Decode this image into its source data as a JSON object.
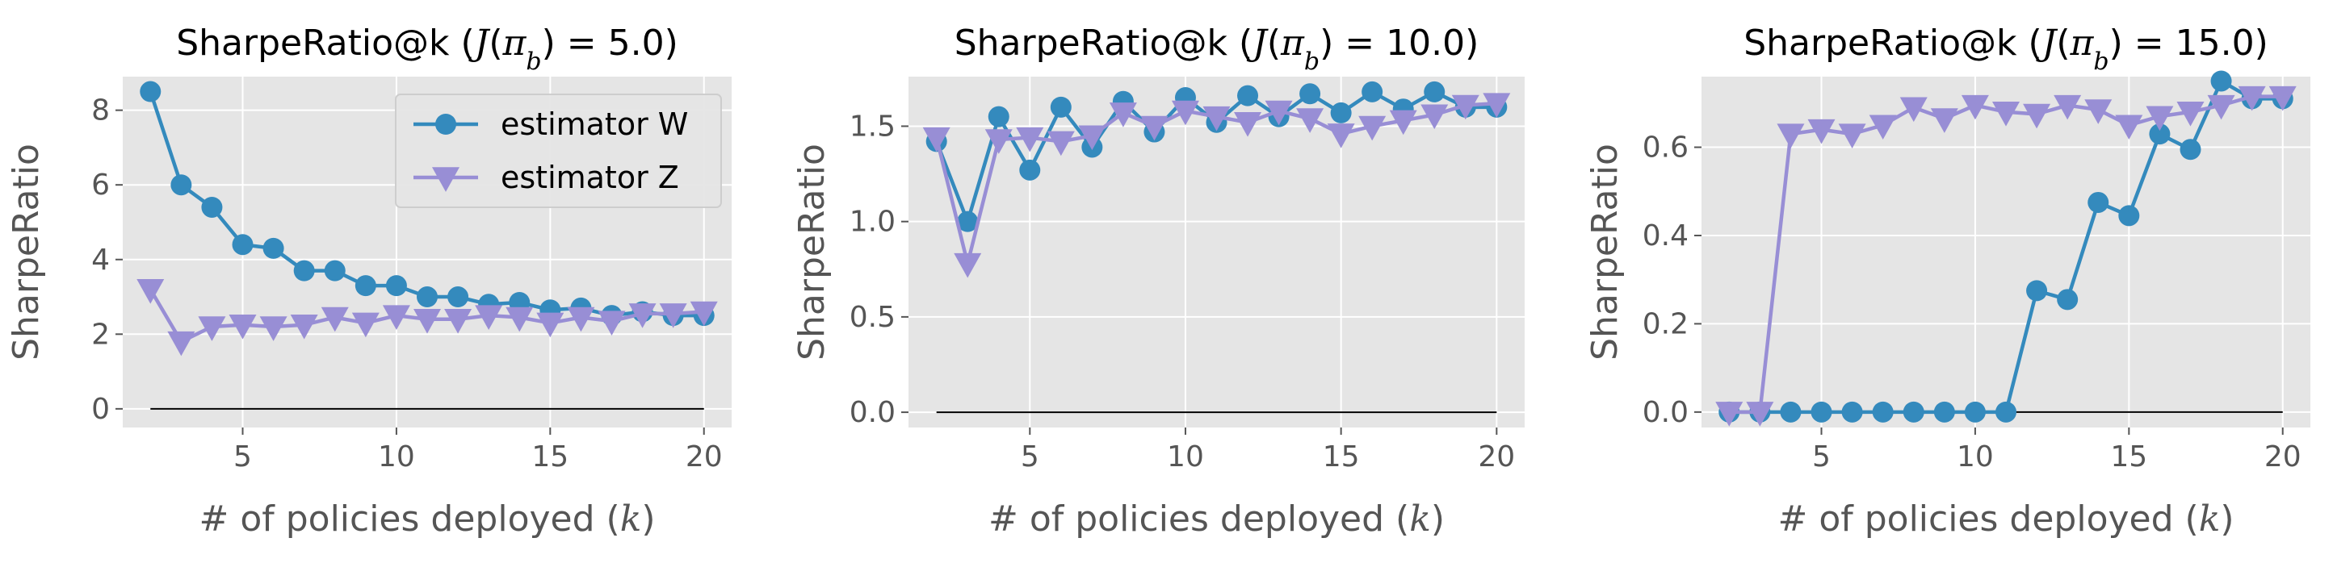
{
  "colors": {
    "series_w": "#348ABD",
    "series_z": "#988ED5",
    "plot_bg": "#E5E5E5",
    "grid": "#FFFFFF",
    "text": "#555555"
  },
  "chart_data": [
    {
      "type": "line",
      "title": "SharpeRatio@k (J(π_b) = 5.0)",
      "title_parts": {
        "prefix": "SharpeRatio@k (",
        "math_j": "J",
        "math_pi": "π",
        "math_sub": "b",
        "math_rest": ") = 5.0",
        "suffix": ")"
      },
      "xlabel": "# of policies deployed (k)",
      "ylabel": "SharpeRatio",
      "xlim": [
        1.1,
        20.9
      ],
      "ylim": [
        -0.5,
        8.9
      ],
      "xticks": [
        5,
        10,
        15,
        20
      ],
      "yticks": [
        0,
        2,
        4,
        6,
        8
      ],
      "ytick_labels": [
        "0",
        "2",
        "4",
        "6",
        "8"
      ],
      "grid": true,
      "legend": "top-right",
      "hline": 0,
      "x": [
        2,
        3,
        4,
        5,
        6,
        7,
        8,
        9,
        10,
        11,
        12,
        13,
        14,
        15,
        16,
        17,
        18,
        19,
        20
      ],
      "series": [
        {
          "name": "estimator W",
          "marker": "circle",
          "values": [
            8.5,
            6.0,
            5.4,
            4.4,
            4.3,
            3.7,
            3.7,
            3.3,
            3.3,
            3.0,
            3.0,
            2.8,
            2.85,
            2.65,
            2.7,
            2.5,
            2.6,
            2.5,
            2.5
          ]
        },
        {
          "name": "estimator Z",
          "marker": "triangle-down",
          "values": [
            3.2,
            1.8,
            2.2,
            2.25,
            2.2,
            2.25,
            2.45,
            2.3,
            2.5,
            2.4,
            2.4,
            2.5,
            2.45,
            2.3,
            2.45,
            2.35,
            2.55,
            2.55,
            2.6
          ]
        }
      ]
    },
    {
      "type": "line",
      "title": "SharpeRatio@k (J(π_b) = 10.0)",
      "title_parts": {
        "prefix": "SharpeRatio@k (",
        "math_j": "J",
        "math_pi": "π",
        "math_sub": "b",
        "math_rest": ") = 10.0",
        "suffix": ")"
      },
      "xlabel": "# of policies deployed (k)",
      "ylabel": "SharpeRatio",
      "xlim": [
        1.1,
        20.9
      ],
      "ylim": [
        -0.08,
        1.76
      ],
      "xticks": [
        5,
        10,
        15,
        20
      ],
      "yticks": [
        0.0,
        0.5,
        1.0,
        1.5
      ],
      "ytick_labels": [
        "0.0",
        "0.5",
        "1.0",
        "1.5"
      ],
      "grid": true,
      "hline": 0,
      "x": [
        2,
        3,
        4,
        5,
        6,
        7,
        8,
        9,
        10,
        11,
        12,
        13,
        14,
        15,
        16,
        17,
        18,
        19,
        20
      ],
      "series": [
        {
          "name": "estimator W",
          "marker": "circle",
          "values": [
            1.42,
            1.0,
            1.55,
            1.27,
            1.6,
            1.39,
            1.63,
            1.47,
            1.65,
            1.52,
            1.66,
            1.55,
            1.67,
            1.57,
            1.68,
            1.59,
            1.68,
            1.6,
            1.6
          ]
        },
        {
          "name": "estimator Z",
          "marker": "triangle-down",
          "values": [
            1.44,
            0.78,
            1.43,
            1.44,
            1.42,
            1.45,
            1.57,
            1.5,
            1.58,
            1.55,
            1.52,
            1.58,
            1.54,
            1.46,
            1.5,
            1.53,
            1.56,
            1.61,
            1.62
          ]
        }
      ]
    },
    {
      "type": "line",
      "title": "SharpeRatio@k (J(π_b) = 15.0)",
      "title_parts": {
        "prefix": "SharpeRatio@k (",
        "math_j": "J",
        "math_pi": "π",
        "math_sub": "b",
        "math_rest": ") = 15.0",
        "suffix": ")"
      },
      "xlabel": "# of policies deployed (k)",
      "ylabel": "SharpeRatio",
      "xlim": [
        1.1,
        20.9
      ],
      "ylim": [
        -0.035,
        0.76
      ],
      "xticks": [
        5,
        10,
        15,
        20
      ],
      "yticks": [
        0.0,
        0.2,
        0.4,
        0.6
      ],
      "ytick_labels": [
        "0.0",
        "0.2",
        "0.4",
        "0.6"
      ],
      "grid": true,
      "hline": 0,
      "x": [
        2,
        3,
        4,
        5,
        6,
        7,
        8,
        9,
        10,
        11,
        12,
        13,
        14,
        15,
        16,
        17,
        18,
        19,
        20
      ],
      "series": [
        {
          "name": "estimator W",
          "marker": "circle",
          "values": [
            0.0,
            0.0,
            0.0,
            0.0,
            0.0,
            0.0,
            0.0,
            0.0,
            0.0,
            0.0,
            0.275,
            0.255,
            0.475,
            0.445,
            0.63,
            0.595,
            0.75,
            0.71,
            0.71
          ]
        },
        {
          "name": "estimator Z",
          "marker": "triangle-down",
          "values": [
            0.0,
            0.0,
            0.63,
            0.64,
            0.63,
            0.65,
            0.69,
            0.665,
            0.695,
            0.68,
            0.675,
            0.695,
            0.685,
            0.65,
            0.67,
            0.68,
            0.695,
            0.715,
            0.715
          ]
        }
      ]
    }
  ]
}
